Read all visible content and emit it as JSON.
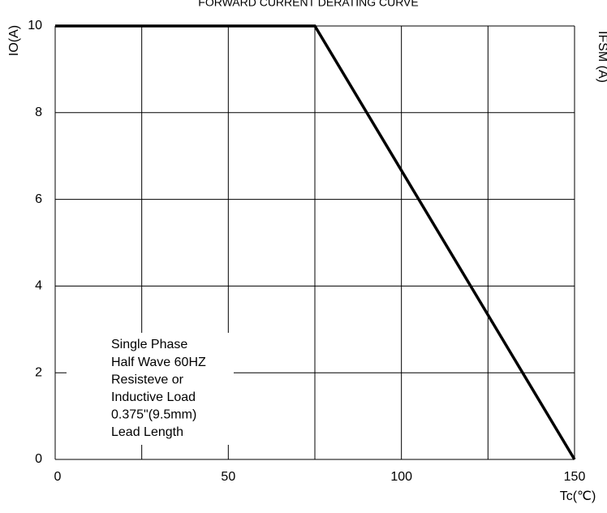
{
  "chart_data": {
    "type": "line",
    "title": "FORWARD CURRENT  DERATING CURVE",
    "y_label": "IO(A)",
    "x_label": "Tc(℃)",
    "y2_label": "IFSM (A)",
    "annotation": [
      "Single Phase",
      "Half Wave 60HZ",
      "Resisteve or",
      "Inductive Load",
      "0.375\"(9.5mm)",
      "Lead Length"
    ],
    "x": [
      0,
      75,
      150
    ],
    "series": [
      {
        "name": "IO",
        "color": "#000000",
        "values": [
          10,
          10,
          0
        ]
      }
    ],
    "xlim": [
      0,
      150
    ],
    "xticks": [
      0,
      50,
      100,
      150
    ],
    "xgrid": [
      0,
      25,
      50,
      75,
      100,
      125,
      150
    ],
    "ylim": [
      0,
      10
    ],
    "yticks": [
      0,
      2,
      4,
      6,
      8,
      10
    ],
    "grid": true
  }
}
